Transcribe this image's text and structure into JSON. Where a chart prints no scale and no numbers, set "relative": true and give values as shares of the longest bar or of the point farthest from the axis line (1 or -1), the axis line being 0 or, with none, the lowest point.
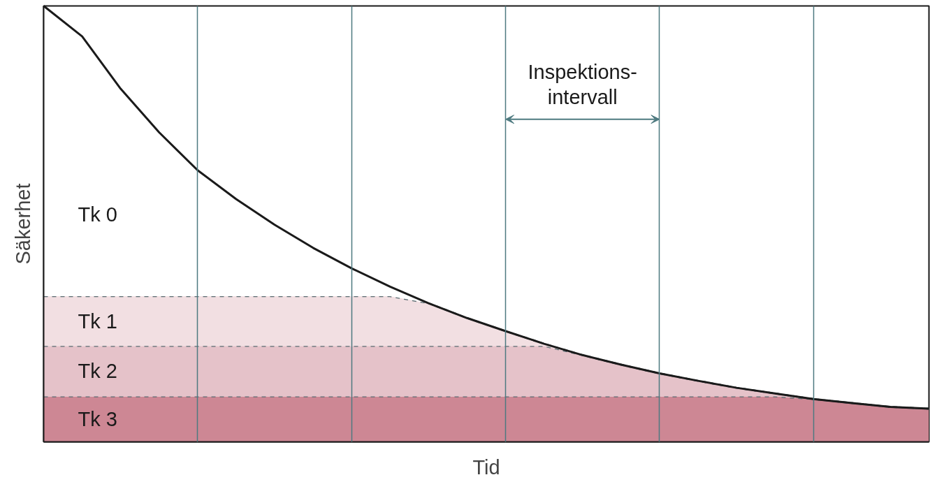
{
  "chart_data": {
    "type": "area",
    "relative": true,
    "stacked": true,
    "xlabel": "Tid",
    "ylabel": "Säkerhet",
    "grid": "x",
    "line_style": "dashed",
    "categories": [
      null,
      null,
      null,
      null,
      null,
      null,
      null,
      null,
      null,
      null,
      null,
      null,
      null,
      null,
      null,
      null,
      null,
      null,
      null,
      null,
      null,
      null,
      null,
      null
    ],
    "annotations": [
      "Inspektions-\nintervall"
    ],
    "series": [
      {
        "name": "Tk 3",
        "color": "#cd8794",
        "values": [
          0.104,
          0.104,
          0.104,
          0.104,
          0.104,
          0.104,
          0.104,
          0.104,
          0.104,
          0.104,
          0.104,
          0.104,
          0.104,
          0.104,
          0.104,
          0.104,
          0.104,
          0.104,
          0.104,
          0.104,
          0.098,
          0.089,
          0.08,
          0.076
        ]
      },
      {
        "name": "Tk 2",
        "color": "#e5c2c9",
        "values": [
          0.116,
          0.116,
          0.116,
          0.116,
          0.116,
          0.116,
          0.116,
          0.116,
          0.116,
          0.116,
          0.116,
          0.116,
          0.116,
          0.116,
          0.095,
          0.073,
          0.053,
          0.036,
          0.02,
          0.007,
          0,
          0,
          0,
          0
        ]
      },
      {
        "name": "Tk 1",
        "color": "#f2dfe2",
        "values": [
          0.114,
          0.114,
          0.114,
          0.114,
          0.114,
          0.114,
          0.114,
          0.114,
          0.114,
          0.114,
          0.098,
          0.064,
          0.034,
          0.005,
          0,
          0,
          0,
          0,
          0,
          0,
          0,
          0,
          0,
          0
        ]
      },
      {
        "name": "Tk 0",
        "color": "#ffffff",
        "line_style": "solid",
        "values": [
          0.666,
          0.596,
          0.476,
          0.376,
          0.289,
          0.223,
          0.164,
          0.111,
          0.064,
          0.022,
          0,
          0,
          0,
          0,
          0,
          0,
          0,
          0,
          0,
          0,
          0,
          0,
          0,
          0
        ]
      }
    ]
  }
}
